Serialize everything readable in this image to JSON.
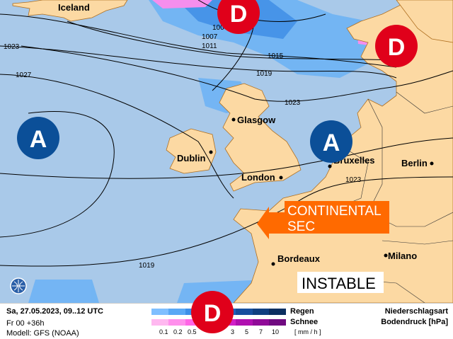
{
  "colors": {
    "sea": "#a9c9e9",
    "land": "#fcd9a3",
    "coast": "#b07020",
    "low": "#e0001a",
    "high": "#0b4f98",
    "arrow": "#ff6a00"
  },
  "map": {
    "places": [
      "Iceland",
      "Glasgow",
      "Dublin",
      "London",
      "Bruxelles",
      "Berlin",
      "Bordeaux",
      "Milano"
    ],
    "isobars": [
      "100",
      "1007",
      "1011",
      "1015",
      "1019",
      "1023",
      "1027",
      "1023",
      "1023",
      "1019"
    ],
    "pressure_centers": [
      {
        "label": "D",
        "type": "low"
      },
      {
        "label": "D",
        "type": "low"
      },
      {
        "label": "A",
        "type": "high"
      },
      {
        "label": "A",
        "type": "high"
      },
      {
        "label": "D",
        "type": "low"
      }
    ],
    "annotation_continental": [
      "CONTINENTAL",
      "SEC"
    ],
    "annotation_instable": "INSTABLE",
    "logo_icon": "globe-icon"
  },
  "legend": {
    "date": "Sa, 27.05.2023, 09..12 UTC",
    "run": "Fr 00 +36h",
    "model": "Modell: GFS (NOAA)",
    "rain_label": "Regen",
    "snow_label": "Schnee",
    "unit": "[ mm / h ]",
    "scale": [
      "0.1",
      "0.2",
      "0.5",
      "3",
      "5",
      "7",
      "10"
    ],
    "title1": "Niederschlagsart",
    "title2": "Bodendruck [hPa]",
    "rain_colors": [
      "#7fbfff",
      "#5aa8f5",
      "#3d8fe8",
      "#2a78d6",
      "#1f63bd",
      "#174f9e",
      "#0f3f80",
      "#0b2f60"
    ],
    "snow_colors": [
      "#ffb8f0",
      "#ff90ec",
      "#ff66e6",
      "#ee44dd",
      "#d020c8",
      "#b010b0",
      "#900a98",
      "#700a80"
    ]
  }
}
